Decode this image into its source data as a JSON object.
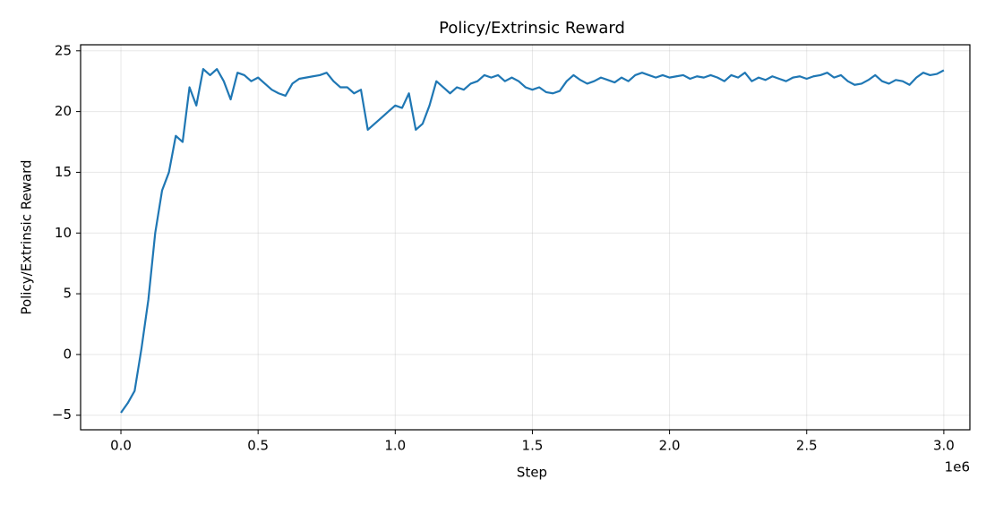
{
  "chart_data": {
    "type": "line",
    "title": "Policy/Extrinsic Reward",
    "xlabel": "Step",
    "ylabel": "Policy/Extrinsic Reward",
    "x_offset_label": "1e6",
    "x": [
      0,
      25000,
      50000,
      75000,
      100000,
      125000,
      150000,
      175000,
      200000,
      225000,
      250000,
      275000,
      300000,
      325000,
      350000,
      375000,
      400000,
      425000,
      450000,
      475000,
      500000,
      525000,
      550000,
      575000,
      600000,
      625000,
      650000,
      675000,
      700000,
      725000,
      750000,
      775000,
      800000,
      825000,
      850000,
      875000,
      900000,
      925000,
      950000,
      975000,
      1000000,
      1025000,
      1050000,
      1075000,
      1100000,
      1125000,
      1150000,
      1175000,
      1200000,
      1225000,
      1250000,
      1275000,
      1300000,
      1325000,
      1350000,
      1375000,
      1400000,
      1425000,
      1450000,
      1475000,
      1500000,
      1525000,
      1550000,
      1575000,
      1600000,
      1625000,
      1650000,
      1675000,
      1700000,
      1725000,
      1750000,
      1775000,
      1800000,
      1825000,
      1850000,
      1875000,
      1900000,
      1925000,
      1950000,
      1975000,
      2000000,
      2025000,
      2050000,
      2075000,
      2100000,
      2125000,
      2150000,
      2175000,
      2200000,
      2225000,
      2250000,
      2275000,
      2300000,
      2325000,
      2350000,
      2375000,
      2400000,
      2425000,
      2450000,
      2475000,
      2500000,
      2525000,
      2550000,
      2575000,
      2600000,
      2625000,
      2650000,
      2675000,
      2700000,
      2725000,
      2750000,
      2775000,
      2800000,
      2825000,
      2850000,
      2875000,
      2900000,
      2925000,
      2950000,
      2975000,
      3000000
    ],
    "series": [
      {
        "name": "Policy/Extrinsic Reward",
        "color": "#1f77b4",
        "values": [
          -4.8,
          -4.0,
          -3.0,
          0.5,
          4.5,
          10.0,
          13.5,
          15.0,
          18.0,
          17.5,
          22.0,
          20.5,
          23.5,
          23.0,
          23.5,
          22.5,
          21.0,
          23.2,
          23.0,
          22.5,
          22.8,
          22.3,
          21.8,
          21.5,
          21.3,
          22.3,
          22.7,
          22.8,
          22.9,
          23.0,
          23.2,
          22.5,
          22.0,
          22.0,
          21.5,
          21.8,
          18.5,
          19.0,
          19.5,
          20.0,
          20.5,
          20.3,
          21.5,
          18.5,
          19.0,
          20.5,
          22.5,
          22.0,
          21.5,
          22.0,
          21.8,
          22.3,
          22.5,
          23.0,
          22.8,
          23.0,
          22.5,
          22.8,
          22.5,
          22.0,
          21.8,
          22.0,
          21.6,
          21.5,
          21.7,
          22.5,
          23.0,
          22.6,
          22.3,
          22.5,
          22.8,
          22.6,
          22.4,
          22.8,
          22.5,
          23.0,
          23.2,
          23.0,
          22.8,
          23.0,
          22.8,
          22.9,
          23.0,
          22.7,
          22.9,
          22.8,
          23.0,
          22.8,
          22.5,
          23.0,
          22.8,
          23.2,
          22.5,
          22.8,
          22.6,
          22.9,
          22.7,
          22.5,
          22.8,
          22.9,
          22.7,
          22.9,
          23.0,
          23.2,
          22.8,
          23.0,
          22.5,
          22.2,
          22.3,
          22.6,
          23.0,
          22.5,
          22.3,
          22.6,
          22.5,
          22.2,
          22.8,
          23.2,
          23.0,
          23.1,
          23.4
        ]
      }
    ],
    "xlim": [
      -147000,
      3095000
    ],
    "ylim": [
      -6.2,
      25.5
    ],
    "xticks": [
      {
        "value": 0,
        "label": "0.0"
      },
      {
        "value": 500000,
        "label": "0.5"
      },
      {
        "value": 1000000,
        "label": "1.0"
      },
      {
        "value": 1500000,
        "label": "1.5"
      },
      {
        "value": 2000000,
        "label": "2.0"
      },
      {
        "value": 2500000,
        "label": "2.5"
      },
      {
        "value": 3000000,
        "label": "3.0"
      }
    ],
    "yticks": [
      {
        "value": -5,
        "label": "−5"
      },
      0,
      5,
      10,
      15,
      20,
      25
    ],
    "grid": true
  }
}
